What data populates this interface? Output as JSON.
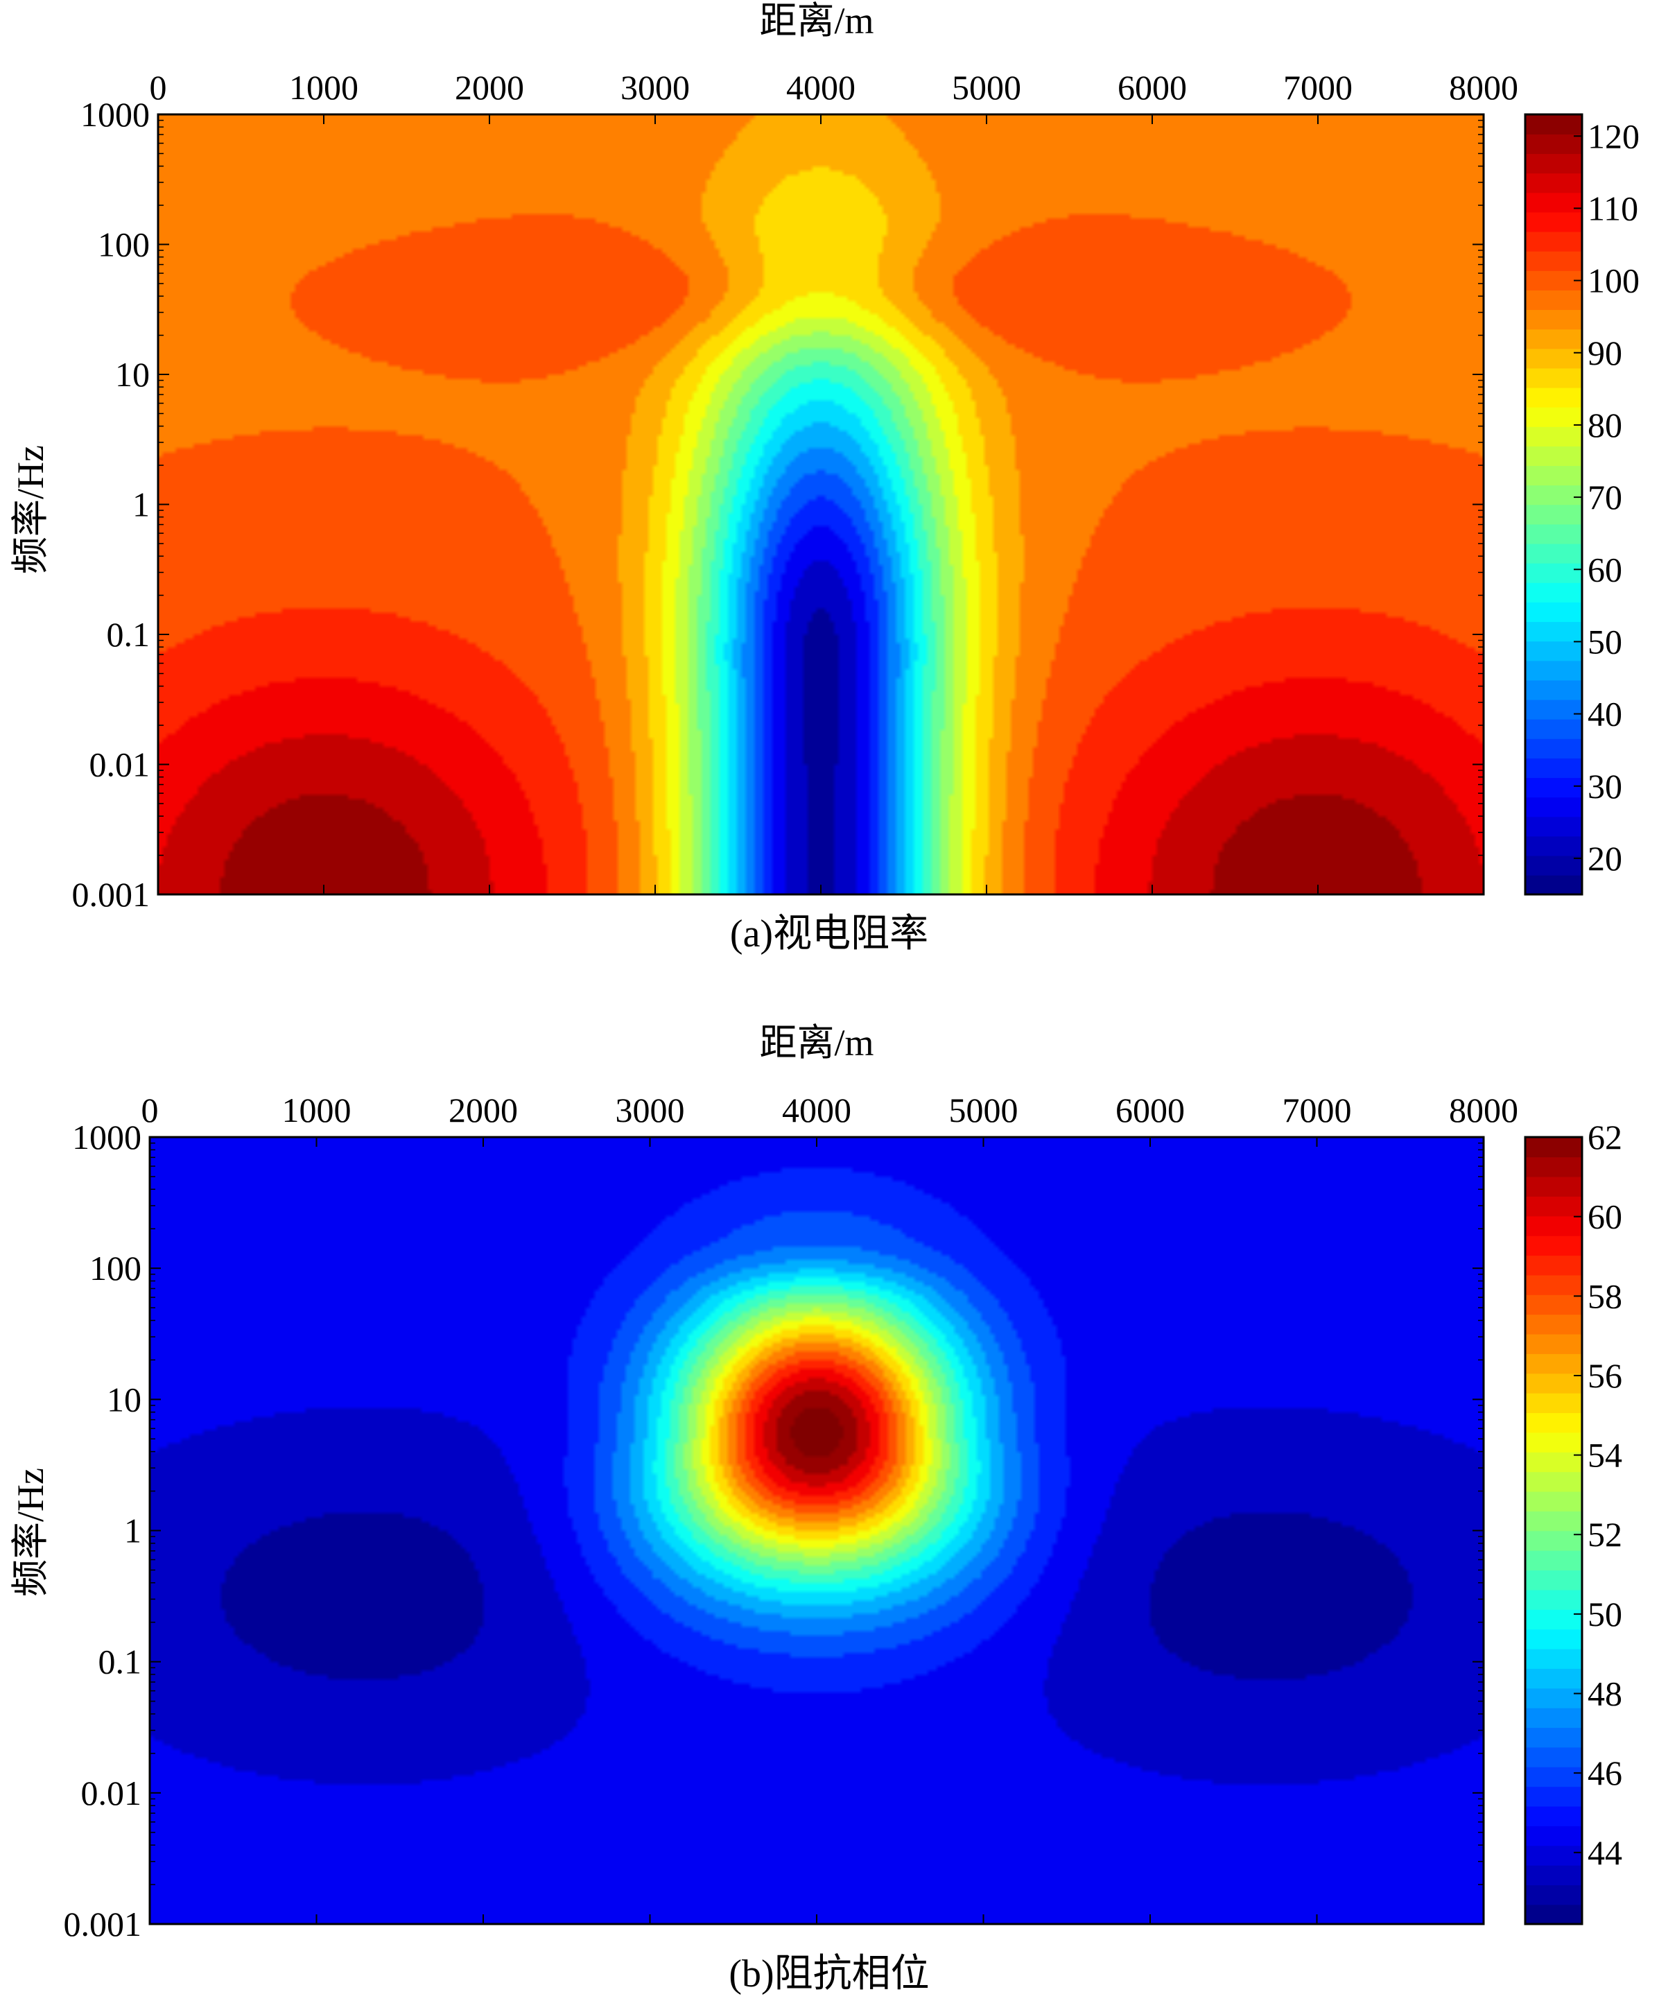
{
  "chart_data": [
    {
      "type": "heatmap",
      "subtype": "filled-contour",
      "caption": "(a)视电阻率",
      "xlabel": "距离/m",
      "ylabel": "频率/Hz",
      "x_axis_position": "top",
      "xlim": [
        0,
        8000
      ],
      "xticks": [
        "0",
        "1000",
        "2000",
        "3000",
        "4000",
        "5000",
        "6000",
        "7000",
        "8000"
      ],
      "ylim": [
        0.001,
        1000
      ],
      "yscale": "log",
      "yticks": [
        "1000",
        "100",
        "10",
        "1",
        "0.1",
        "0.01",
        "0.001"
      ],
      "colorbar": {
        "range": [
          15,
          123
        ],
        "ticks": [
          "120",
          "110",
          "100",
          "90",
          "80",
          "70",
          "60",
          "50",
          "40",
          "30",
          "20"
        ],
        "colormap": "jet"
      },
      "field": {
        "background": 98,
        "anomalies": [
          {
            "x": 4000,
            "log10_f": -1.2,
            "dx": 750,
            "dlogf": 2.6,
            "amp": -80,
            "shape": "column"
          },
          {
            "x": 4000,
            "log10_f": 1.6,
            "dx": 1800,
            "dlogf": 0.45,
            "amp": 10
          },
          {
            "x": 1000,
            "log10_f": -3.0,
            "dx": 1500,
            "dlogf": 1.8,
            "amp": 24
          },
          {
            "x": 7000,
            "log10_f": -3.0,
            "dx": 1500,
            "dlogf": 1.8,
            "amp": 24
          }
        ]
      }
    },
    {
      "type": "heatmap",
      "subtype": "filled-contour",
      "caption": "(b)阻抗相位",
      "xlabel": "距离/m",
      "ylabel": "频率/Hz",
      "x_axis_position": "top",
      "xlim": [
        0,
        8000
      ],
      "xticks": [
        "0",
        "1000",
        "2000",
        "3000",
        "4000",
        "5000",
        "6000",
        "7000",
        "8000"
      ],
      "ylim": [
        0.001,
        1000
      ],
      "yscale": "log",
      "yticks": [
        "1000",
        "100",
        "10",
        "1",
        "0.1",
        "0.01",
        "0.001"
      ],
      "colorbar": {
        "range": [
          42.2,
          62
        ],
        "ticks": [
          "62",
          "60",
          "58",
          "56",
          "54",
          "52",
          "50",
          "48",
          "46",
          "44"
        ],
        "colormap": "jet"
      },
      "field": {
        "background": 44.3,
        "anomalies": [
          {
            "x": 4000,
            "log10_f": 0.75,
            "dx": 850,
            "dlogf": 1.1,
            "amp": 18.3,
            "shape": "funnel"
          },
          {
            "x": 1300,
            "log10_f": -0.5,
            "dx": 1500,
            "dlogf": 1.1,
            "amp": -1.7
          },
          {
            "x": 6700,
            "log10_f": -0.5,
            "dx": 1500,
            "dlogf": 1.1,
            "amp": -1.7
          },
          {
            "x": 4000,
            "log10_f": 2.1,
            "dx": 650,
            "dlogf": 0.25,
            "amp": -1.0
          }
        ]
      }
    }
  ]
}
